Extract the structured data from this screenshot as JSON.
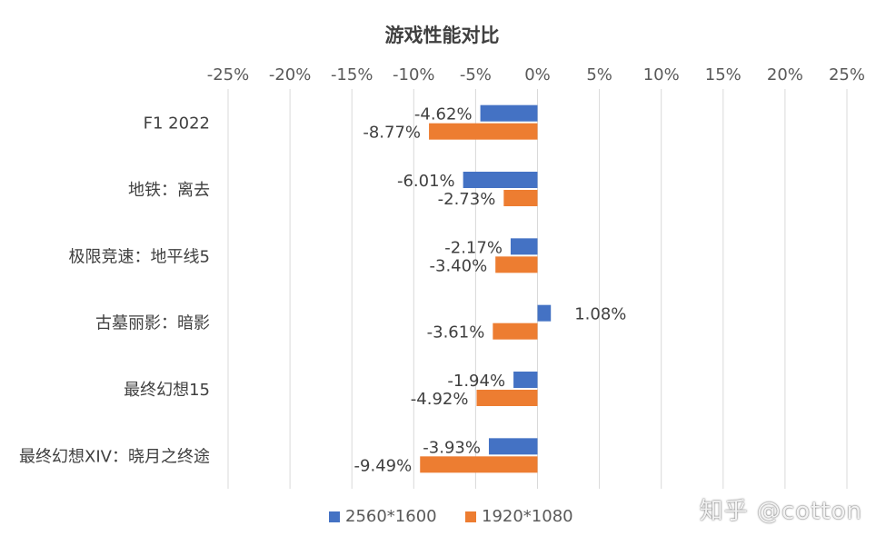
{
  "chart_data": {
    "type": "bar",
    "orientation": "horizontal",
    "title": "游戏性能对比",
    "categories": [
      "F1 2022",
      "地铁：离去",
      "极限竞速：地平线5",
      "古墓丽影：暗影",
      "最终幻想15",
      "最终幻想XIV：晓月之终途"
    ],
    "series": [
      {
        "name": "2560*1600",
        "color": "#4472C4",
        "values": [
          -4.62,
          -6.01,
          -2.17,
          1.08,
          -1.94,
          -3.93
        ],
        "labels": [
          "-4.62%",
          "-6.01%",
          "-2.17%",
          "1.08%",
          "-1.94%",
          "-3.93%"
        ]
      },
      {
        "name": "1920*1080",
        "color": "#ED7D31",
        "values": [
          -8.77,
          -2.73,
          -3.4,
          -3.61,
          -4.92,
          -9.49
        ],
        "labels": [
          "-8.77%",
          "-2.73%",
          "-3.40%",
          "-3.61%",
          "-4.92%",
          "-9.49%"
        ]
      }
    ],
    "xaxis": {
      "min": -25,
      "max": 25,
      "step": 5,
      "ticks": [
        "-25%",
        "-20%",
        "-15%",
        "-10%",
        "-5%",
        "0%",
        "5%",
        "10%",
        "15%",
        "20%",
        "25%"
      ],
      "position": "top"
    },
    "xlabel": "",
    "ylabel": "",
    "grid": true,
    "legend_position": "bottom"
  },
  "watermark": "知乎 @cotton"
}
